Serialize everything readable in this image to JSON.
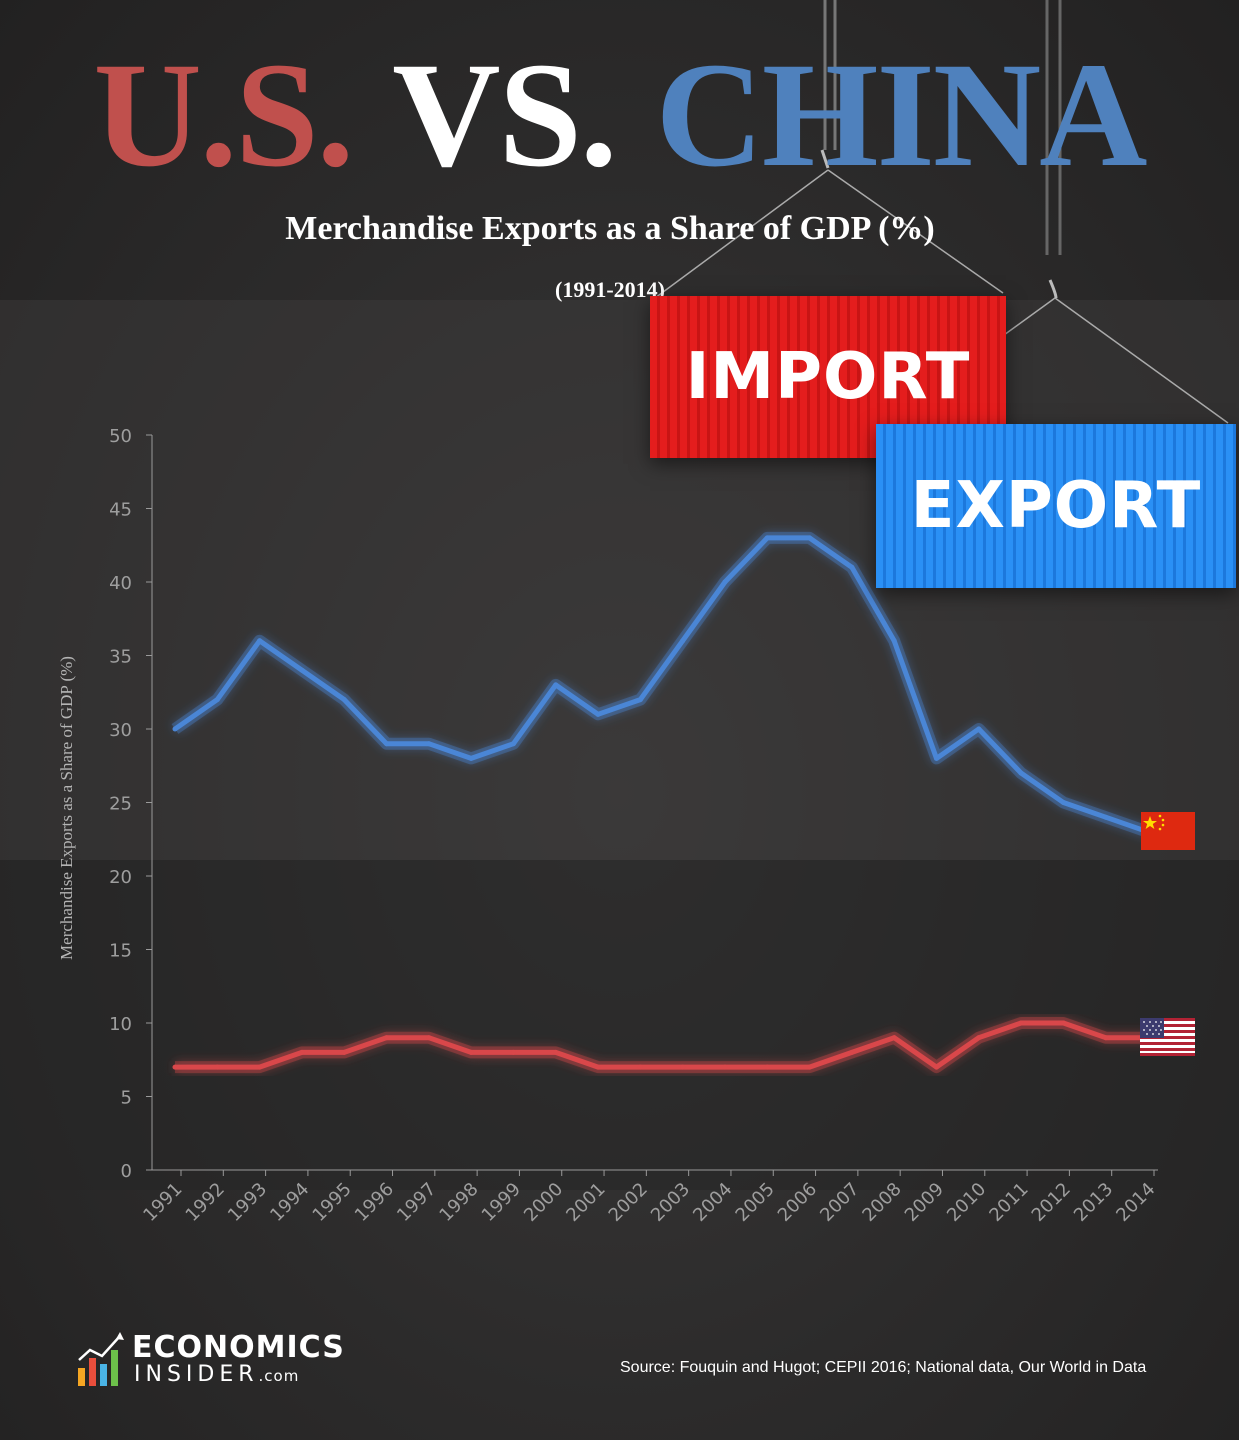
{
  "header": {
    "title_us": "U.S.",
    "title_vs": "VS.",
    "title_china": "CHINA",
    "subtitle": "Merchandise Exports as a Share of GDP  (%)",
    "year_range": "(1991-2014)"
  },
  "graphics": {
    "import_label": "IMPORT",
    "export_label": "EXPORT",
    "china_flag_icon": "china-flag-icon",
    "us_flag_icon": "us-flag-icon"
  },
  "footer": {
    "logo_line1": "ECONOMICS",
    "logo_line2": "INSIDER",
    "logo_suffix": ".com",
    "source": "Source:  Fouquin and Hugot; CEPII 2016; National data, Our World in  Data"
  },
  "colors": {
    "us": "#c0504d",
    "china": "#4f81bd",
    "us_line": "#d9474a",
    "china_line": "#4a86d6"
  },
  "chart_data": {
    "type": "line",
    "title": "Merchandise Exports as a Share of GDP  (%)",
    "subtitle": "(1991-2014)",
    "xlabel": "",
    "ylabel": "Merchandise Exports as a Share of GDP (%)",
    "ylim": [
      0,
      50
    ],
    "yticks": [
      0,
      5,
      10,
      15,
      20,
      25,
      30,
      35,
      40,
      45,
      50
    ],
    "grid": false,
    "legend": "flags at line ends",
    "categories": [
      "1991",
      "1992",
      "1993",
      "1994",
      "1995",
      "1996",
      "1997",
      "1998",
      "1999",
      "2000",
      "2001",
      "2002",
      "2003",
      "2004",
      "2005",
      "2006",
      "2007",
      "2008",
      "2009",
      "2010",
      "2011",
      "2012",
      "2013",
      "2014"
    ],
    "series": [
      {
        "key": "china",
        "values": [
          30,
          32,
          36,
          34,
          32,
          29,
          29,
          28,
          29,
          33,
          31,
          32,
          36,
          40,
          43,
          43,
          41,
          36,
          28,
          30,
          27,
          25,
          24,
          23
        ]
      },
      {
        "key": "us",
        "values": [
          7,
          7,
          7,
          8,
          8,
          9,
          9,
          8,
          8,
          8,
          7,
          7,
          7,
          7,
          7,
          7,
          8,
          9,
          7,
          9,
          10,
          10,
          9,
          9
        ]
      }
    ]
  }
}
